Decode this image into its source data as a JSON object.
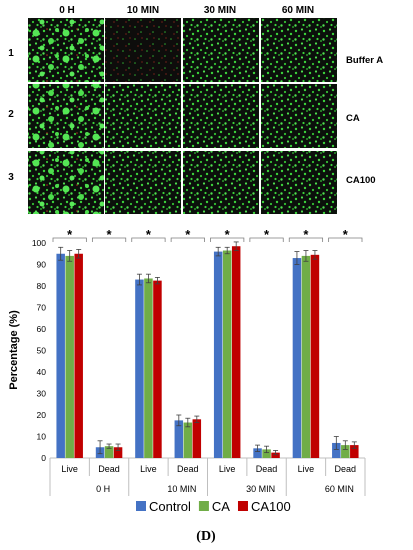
{
  "micrographs": {
    "columns": [
      "0 H",
      "10 MIN",
      "30 MIN",
      "60 MIN"
    ],
    "rows": [
      {
        "index": "1",
        "condition": "Buffer A"
      },
      {
        "index": "2",
        "condition": "CA"
      },
      {
        "index": "3",
        "condition": "CA100"
      }
    ],
    "colors": {
      "live_stain": "#3bd13b",
      "dead_stain": "#c02a20",
      "background": "#0b100b"
    }
  },
  "chart_data": {
    "type": "bar",
    "ylabel": "Percentage (%)",
    "ylim": [
      0,
      100
    ],
    "yticks": [
      0,
      10,
      20,
      30,
      40,
      50,
      60,
      70,
      80,
      90,
      100
    ],
    "groups": [
      "0 H",
      "10 MIN",
      "30 MIN",
      "60 MIN"
    ],
    "categories": [
      "Live",
      "Dead",
      "Live",
      "Dead",
      "Live",
      "Dead",
      "Live",
      "Dead"
    ],
    "significance": [
      "*",
      "*",
      "*",
      "*",
      "*",
      "*",
      "*",
      "*"
    ],
    "series": [
      {
        "name": "Control",
        "color": "#4472c4",
        "values": [
          95,
          5,
          83,
          17.5,
          96,
          4.5,
          93,
          7
        ],
        "errors": [
          3,
          3,
          2.5,
          2.5,
          2,
          1.5,
          3,
          3
        ]
      },
      {
        "name": "CA",
        "color": "#70ad47",
        "values": [
          94,
          5.5,
          83.5,
          16.5,
          96.5,
          4,
          94,
          6
        ],
        "errors": [
          2.5,
          1,
          2,
          2,
          1.5,
          1.5,
          2.5,
          2
        ]
      },
      {
        "name": "CA100",
        "color": "#c00000",
        "values": [
          95,
          5,
          82.5,
          18,
          98.5,
          2.5,
          94.5,
          6
        ],
        "errors": [
          2,
          1.5,
          1.5,
          1.5,
          2,
          1,
          2,
          1.5
        ]
      }
    ],
    "legend_position": "bottom",
    "grid": false
  },
  "panel_label": "(D)"
}
